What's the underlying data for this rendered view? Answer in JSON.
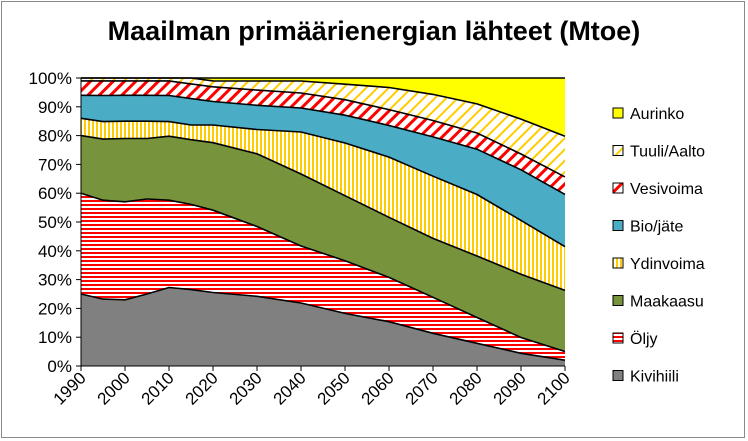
{
  "chart_data": {
    "type": "area",
    "stacked": "percent",
    "title": "Maailman primäärienergian lähteet (Mtoe)",
    "xlabel": "",
    "ylabel": "",
    "x": [
      1990,
      1995,
      2000,
      2005,
      2010,
      2015,
      2020,
      2030,
      2040,
      2050,
      2060,
      2070,
      2080,
      2090,
      2100
    ],
    "ylim": [
      0,
      100
    ],
    "yticks": [
      "0%",
      "10%",
      "20%",
      "30%",
      "40%",
      "50%",
      "60%",
      "70%",
      "80%",
      "90%",
      "100%"
    ],
    "xticks": [
      "1990",
      "2000",
      "2010",
      "2020",
      "2030",
      "2040",
      "2050",
      "2060",
      "2070",
      "2080",
      "2090",
      "2100"
    ],
    "legend_position": "right",
    "series": [
      {
        "name": "Kivihiili",
        "color": "#808080",
        "pattern": "solid",
        "values": [
          25,
          23,
          23,
          25,
          27,
          26,
          25,
          23,
          21,
          17,
          14,
          10,
          7,
          4,
          2
        ]
      },
      {
        "name": "Öljy",
        "color": "#ff0000",
        "pattern": "hlines",
        "values": [
          35,
          34,
          34,
          33,
          30,
          29,
          28,
          23,
          19,
          17,
          14,
          11,
          8,
          5,
          3
        ]
      },
      {
        "name": "Maakaasu",
        "color": "#77933c",
        "pattern": "solid",
        "values": [
          20,
          21,
          22,
          21,
          22,
          22,
          23,
          24,
          24,
          21,
          19,
          18,
          19,
          20,
          21
        ]
      },
      {
        "name": "Ydinvoima",
        "color": "#ffcc00",
        "pattern": "vlines",
        "values": [
          6,
          6,
          6,
          6,
          5,
          5,
          6,
          8,
          14,
          17,
          19,
          19,
          19,
          17,
          15
        ]
      },
      {
        "name": "Bio/jäte",
        "color": "#4bacc6",
        "pattern": "solid",
        "values": [
          8,
          9,
          9,
          9,
          9,
          9,
          8,
          8,
          8,
          9,
          10,
          12,
          14,
          16,
          18
        ]
      },
      {
        "name": "Vesivoima",
        "color": "#ff0000",
        "pattern": "diagonal",
        "values": [
          5,
          5,
          5,
          5,
          5,
          5,
          5,
          5,
          5,
          5,
          5,
          5,
          5,
          5,
          6
        ]
      },
      {
        "name": "Tuuli/Aalto",
        "color": "#ffcc00",
        "pattern": "diagonal",
        "values": [
          1,
          1,
          1,
          1,
          1,
          2,
          2,
          3,
          4,
          5,
          7,
          8,
          9,
          11,
          14
        ]
      },
      {
        "name": "Aurinko",
        "color": "#ffff00",
        "pattern": "solid",
        "values": [
          0,
          0,
          0,
          0,
          0,
          0,
          1,
          1,
          1,
          2,
          3,
          5,
          8,
          13,
          20
        ]
      }
    ]
  }
}
